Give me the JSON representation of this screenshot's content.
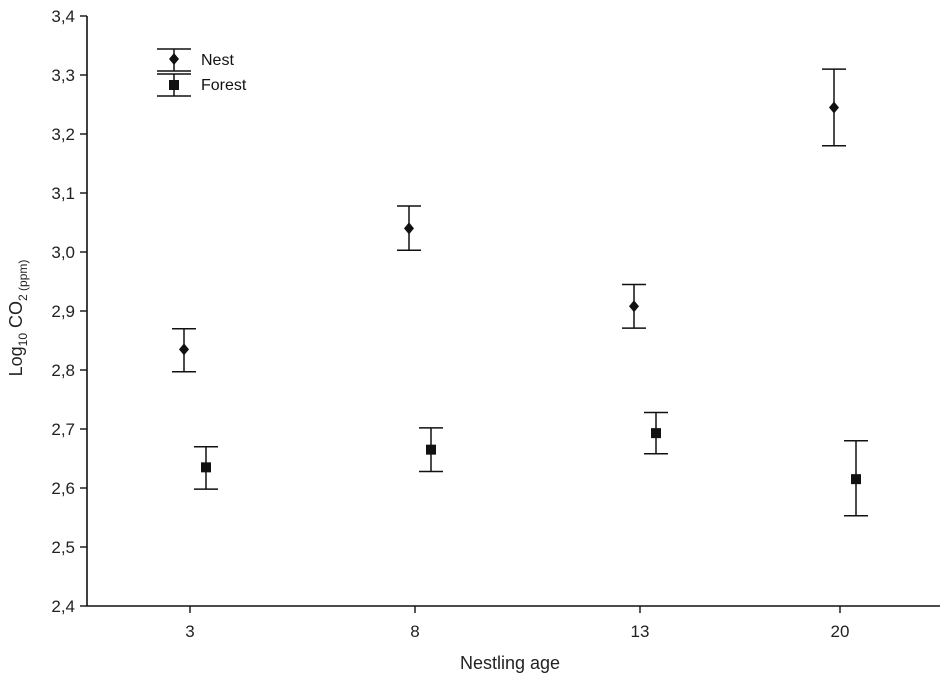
{
  "chart_data": {
    "type": "scatter",
    "xlabel": "Nestling age",
    "ylabel": {
      "prefix": "Log",
      "sub1": "10",
      "mid": " CO",
      "sub2": "2 (ppm)"
    },
    "categories": [
      "3",
      "8",
      "13",
      "20"
    ],
    "ylim": [
      2.4,
      3.4
    ],
    "yticks": [
      "2,4",
      "2,5",
      "2,6",
      "2,7",
      "2,8",
      "2,9",
      "3,0",
      "3,1",
      "3,2",
      "3,3",
      "3,4"
    ],
    "ytick_values": [
      2.4,
      2.5,
      2.6,
      2.7,
      2.8,
      2.9,
      3.0,
      3.1,
      3.2,
      3.3,
      3.4
    ],
    "grid": false,
    "legend_position": "top-left",
    "series": [
      {
        "name": "Nest",
        "marker": "diamond",
        "color": "#111111",
        "values": [
          2.835,
          3.04,
          2.908,
          3.245
        ],
        "lower": [
          2.797,
          3.003,
          2.871,
          3.18
        ],
        "upper": [
          2.87,
          3.078,
          2.945,
          3.31
        ]
      },
      {
        "name": "Forest",
        "marker": "square",
        "color": "#111111",
        "values": [
          2.635,
          2.665,
          2.693,
          2.615
        ],
        "lower": [
          2.598,
          2.628,
          2.658,
          2.553
        ],
        "upper": [
          2.67,
          2.702,
          2.728,
          2.68
        ]
      }
    ]
  }
}
